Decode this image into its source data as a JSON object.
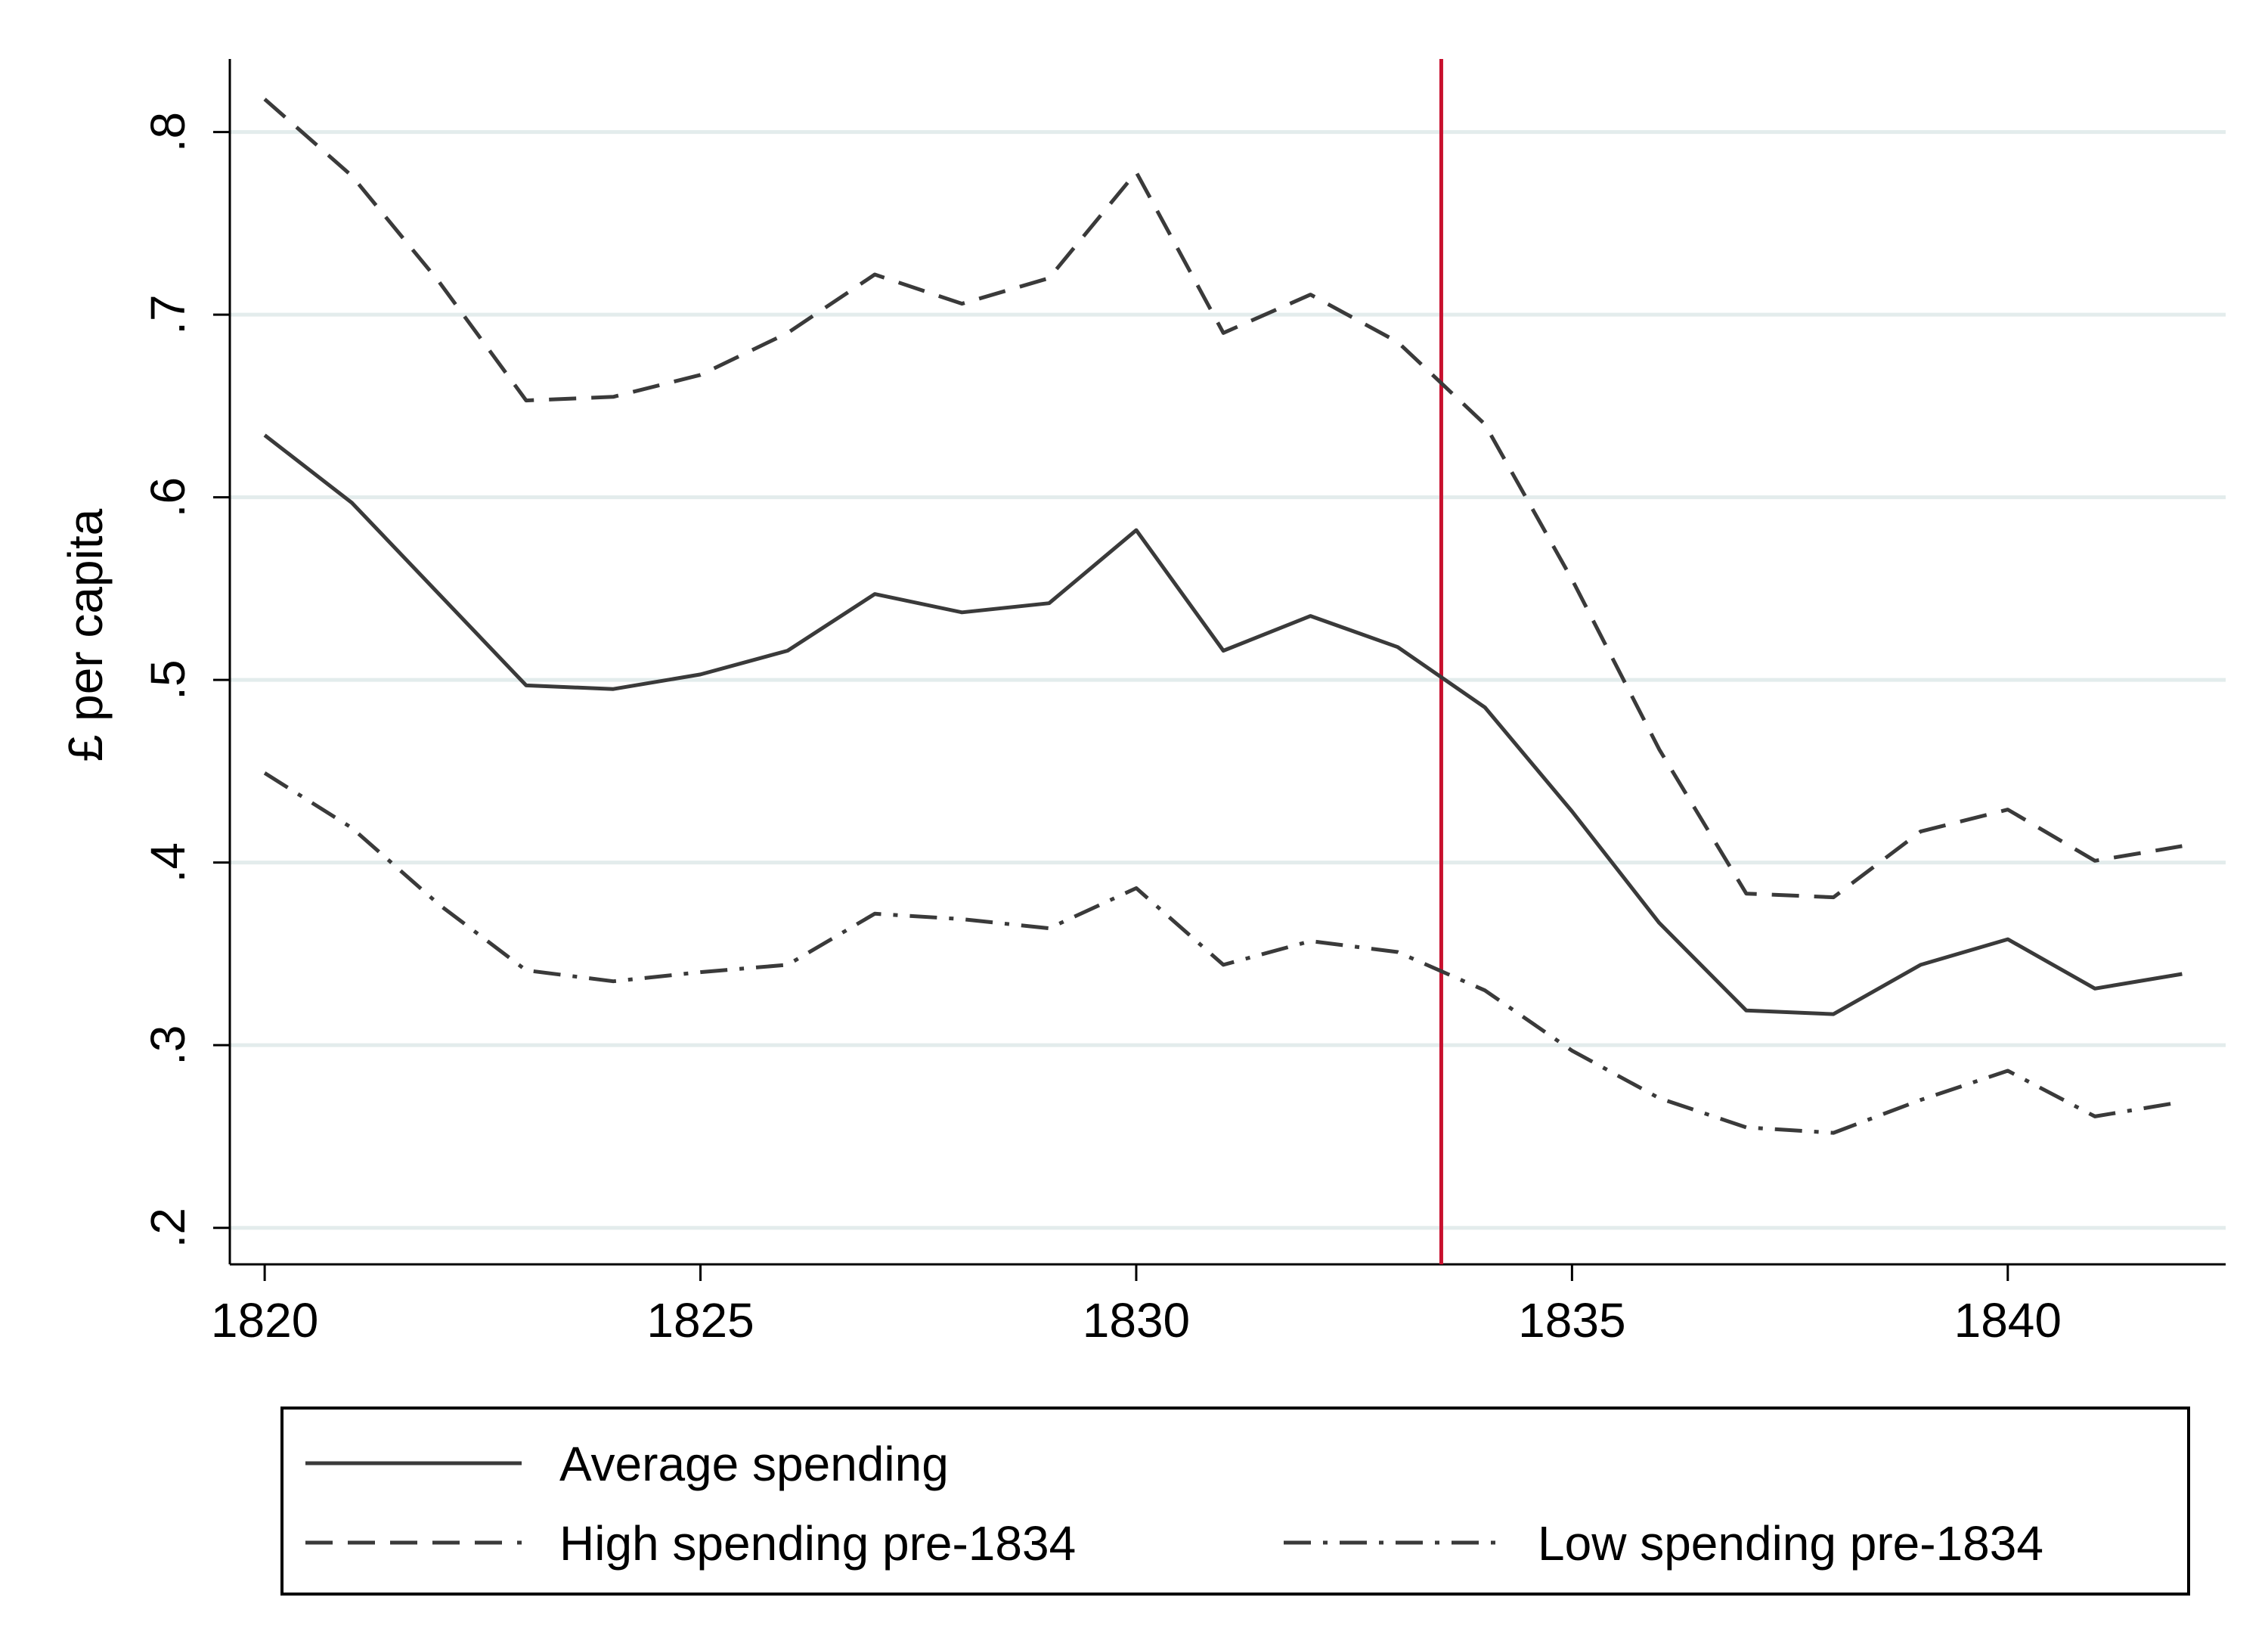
{
  "chart_data": {
    "type": "line",
    "title": "",
    "xlabel": "",
    "ylabel": "£ per capita",
    "xlim": [
      1819.6,
      1842.5
    ],
    "ylim": [
      0.18,
      0.84
    ],
    "x_ticks": [
      1820,
      1825,
      1830,
      1835,
      1840
    ],
    "x_tick_labels": [
      "1820",
      "1825",
      "1830",
      "1835",
      "1840"
    ],
    "y_ticks": [
      0.2,
      0.3,
      0.4,
      0.5,
      0.6,
      0.7,
      0.8
    ],
    "y_tick_labels": [
      ".2",
      ".3",
      ".4",
      ".5",
      ".6",
      ".7",
      ".8"
    ],
    "grid": "horizontal",
    "vertical_reference_line": {
      "x": 1833.5,
      "color": "#c8102e"
    },
    "x": [
      1820,
      1821,
      1822,
      1823,
      1824,
      1825,
      1826,
      1827,
      1828,
      1829,
      1830,
      1831,
      1832,
      1833,
      1834,
      1835,
      1836,
      1837,
      1838,
      1839,
      1840,
      1841,
      1842
    ],
    "series": [
      {
        "name": "Average spending",
        "style": "solid",
        "color": "#3a3a3a",
        "values": [
          0.634,
          0.597,
          0.547,
          0.497,
          0.495,
          0.503,
          0.516,
          0.547,
          0.537,
          0.542,
          0.582,
          0.516,
          0.535,
          0.518,
          0.485,
          0.428,
          0.367,
          0.319,
          0.317,
          0.344,
          0.358,
          0.331,
          0.339
        ]
      },
      {
        "name": "High spending pre-1834",
        "style": "dash",
        "color": "#3a3a3a",
        "values": [
          0.818,
          0.776,
          0.718,
          0.653,
          0.655,
          0.667,
          0.69,
          0.722,
          0.706,
          0.72,
          0.778,
          0.69,
          0.711,
          0.685,
          0.64,
          0.555,
          0.462,
          0.383,
          0.381,
          0.417,
          0.429,
          0.401,
          0.409
        ]
      },
      {
        "name": "Low spending pre-1834",
        "style": "dashdot",
        "color": "#3a3a3a",
        "values": [
          0.449,
          0.419,
          0.377,
          0.341,
          0.335,
          0.34,
          0.344,
          0.372,
          0.369,
          0.364,
          0.386,
          0.344,
          0.357,
          0.351,
          0.33,
          0.297,
          0.271,
          0.255,
          0.252,
          0.27,
          0.286,
          0.261,
          0.269
        ]
      }
    ],
    "legend": {
      "placement": "bottom",
      "entries": [
        "Average spending",
        "High spending pre-1834",
        "Low spending pre-1834"
      ]
    },
    "colors": {
      "grid": "#e3ecec",
      "axis": "#000000",
      "series": "#3a3a3a",
      "reference": "#c8102e"
    }
  }
}
